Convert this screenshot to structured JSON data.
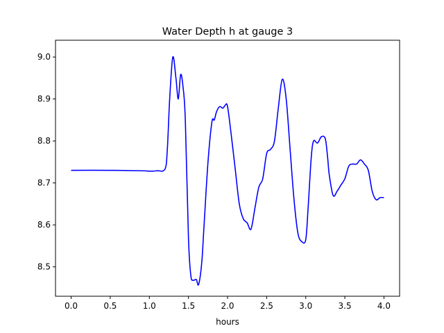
{
  "chart_data": {
    "type": "line",
    "title": "Water Depth h at gauge 3",
    "xlabel": "hours",
    "ylabel": "",
    "xlim": [
      -0.2,
      4.2
    ],
    "ylim": [
      8.43,
      9.04
    ],
    "xticks": [
      0.0,
      0.5,
      1.0,
      1.5,
      2.0,
      2.5,
      3.0,
      3.5,
      4.0
    ],
    "xtick_labels": [
      "0.0",
      "0.5",
      "1.0",
      "1.5",
      "2.0",
      "2.5",
      "3.0",
      "3.5",
      "4.0"
    ],
    "yticks": [
      8.5,
      8.6,
      8.7,
      8.8,
      8.9,
      9.0
    ],
    "ytick_labels": [
      "8.5",
      "8.6",
      "8.7",
      "8.8",
      "8.9",
      "9.0"
    ],
    "grid": false,
    "series": [
      {
        "color": "#0000ff",
        "x": [
          0.0,
          0.5,
          0.9,
          1.0,
          1.1,
          1.2,
          1.23,
          1.26,
          1.3,
          1.34,
          1.37,
          1.4,
          1.43,
          1.46,
          1.5,
          1.53,
          1.56,
          1.6,
          1.63,
          1.67,
          1.7,
          1.75,
          1.8,
          1.83,
          1.86,
          1.9,
          1.94,
          1.97,
          2.0,
          2.05,
          2.1,
          2.15,
          2.2,
          2.25,
          2.3,
          2.35,
          2.4,
          2.45,
          2.5,
          2.55,
          2.6,
          2.65,
          2.7,
          2.75,
          2.8,
          2.85,
          2.9,
          2.95,
          3.0,
          3.03,
          3.07,
          3.1,
          3.15,
          3.2,
          3.25,
          3.28,
          3.3,
          3.35,
          3.4,
          3.45,
          3.5,
          3.55,
          3.6,
          3.65,
          3.7,
          3.75,
          3.8,
          3.85,
          3.9,
          3.95,
          4.0
        ],
        "y": [
          8.73,
          8.73,
          8.729,
          8.728,
          8.729,
          8.733,
          8.78,
          8.9,
          9.0,
          8.95,
          8.9,
          8.958,
          8.93,
          8.85,
          8.57,
          8.48,
          8.468,
          8.47,
          8.458,
          8.51,
          8.6,
          8.75,
          8.845,
          8.85,
          8.87,
          8.882,
          8.878,
          8.885,
          8.882,
          8.81,
          8.73,
          8.65,
          8.615,
          8.605,
          8.59,
          8.64,
          8.69,
          8.71,
          8.77,
          8.78,
          8.8,
          8.88,
          8.947,
          8.9,
          8.78,
          8.66,
          8.58,
          8.56,
          8.565,
          8.64,
          8.76,
          8.8,
          8.795,
          8.81,
          8.805,
          8.76,
          8.72,
          8.67,
          8.68,
          8.695,
          8.71,
          8.74,
          8.745,
          8.745,
          8.755,
          8.745,
          8.73,
          8.68,
          8.66,
          8.665,
          8.665
        ]
      }
    ]
  }
}
